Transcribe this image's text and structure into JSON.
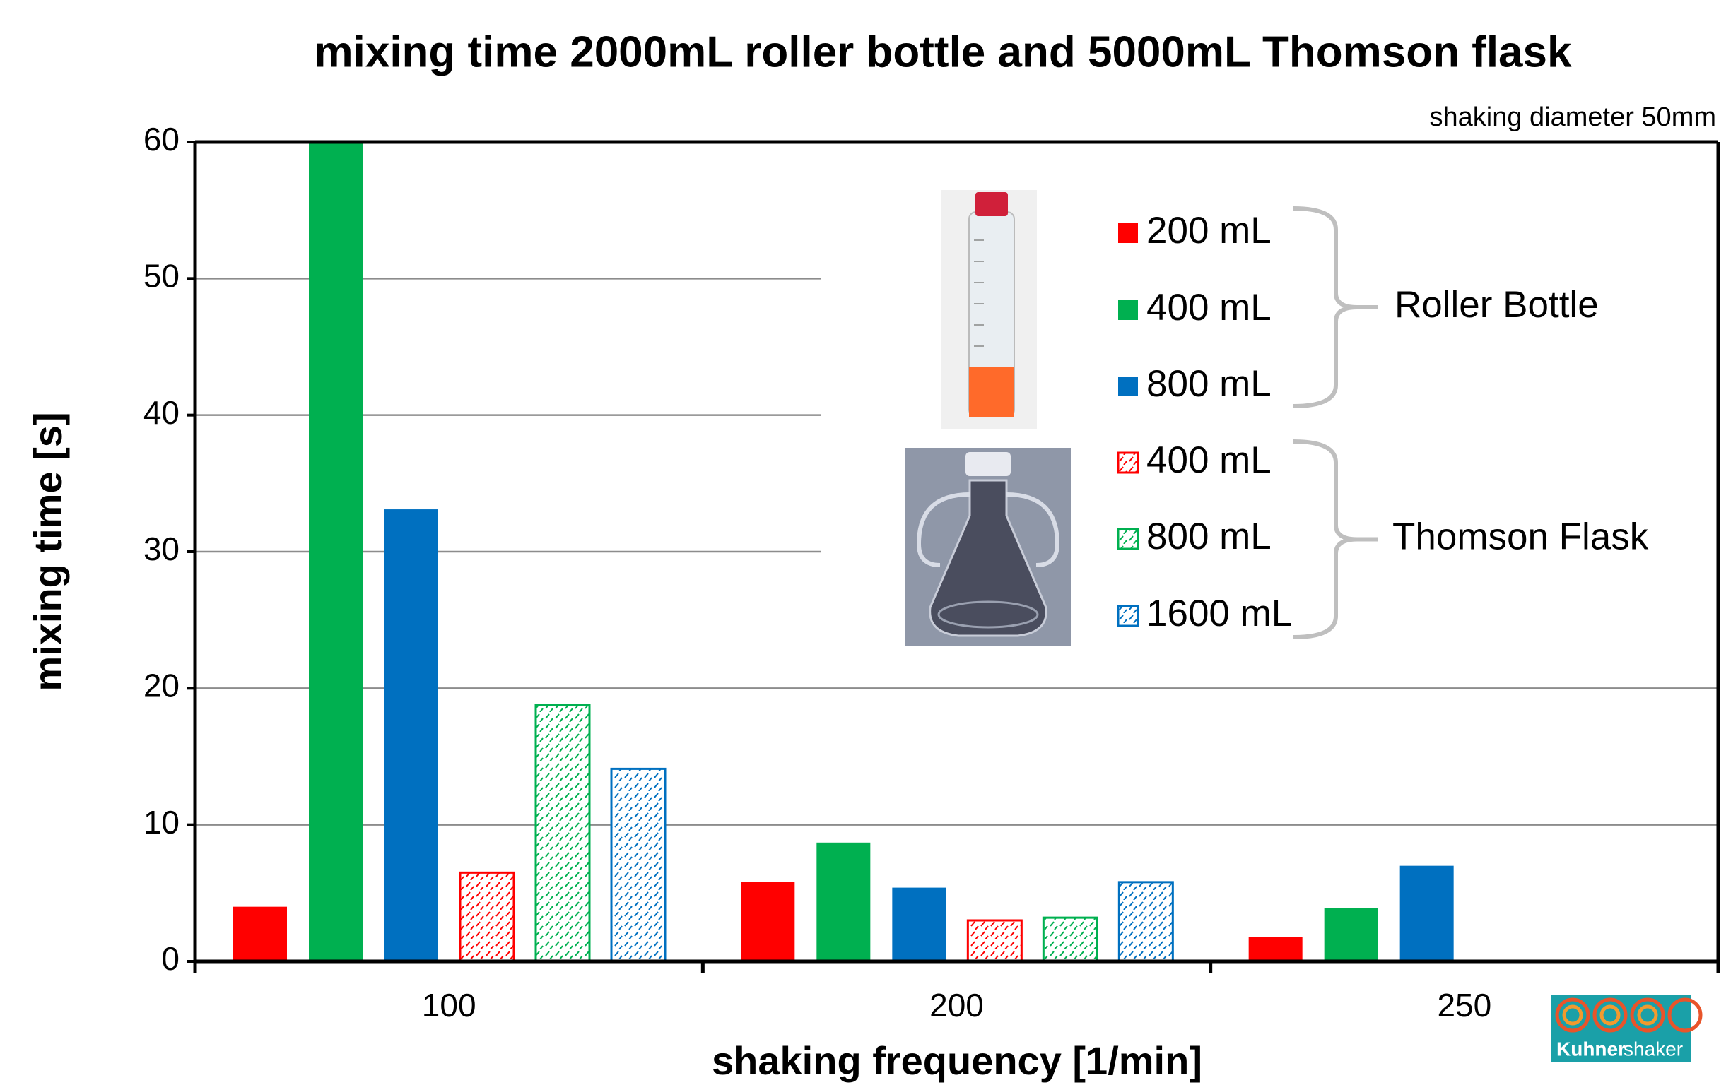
{
  "chart_data": {
    "type": "bar",
    "title": "mixing time 2000mL roller bottle and 5000mL Thomson flask",
    "subtitle": "shaking diameter 50mm",
    "x_label": "shaking frequency  [1/min]",
    "y_label": "mixing time [s]",
    "categories": [
      "100",
      "200",
      "250"
    ],
    "ylim": [
      0,
      60
    ],
    "yticks": [
      0,
      10,
      20,
      30,
      40,
      50,
      60
    ],
    "grid": true,
    "series": [
      {
        "name": "200 mL",
        "color": "#ff0000",
        "pattern": "solid",
        "group": 0,
        "values": [
          4.0,
          5.8,
          1.8
        ]
      },
      {
        "name": "400 mL",
        "color": "#00b050",
        "pattern": "solid",
        "group": 0,
        "values": [
          60,
          8.7,
          3.9
        ]
      },
      {
        "name": "800 mL",
        "color": "#0070c0",
        "pattern": "solid",
        "group": 0,
        "values": [
          33.1,
          5.4,
          7.0
        ]
      },
      {
        "name": "400 mL",
        "color": "#ff0000",
        "pattern": "hatched",
        "group": 1,
        "values": [
          6.5,
          3.0,
          null
        ]
      },
      {
        "name": "800 mL",
        "color": "#00b050",
        "pattern": "hatched",
        "group": 1,
        "values": [
          18.8,
          3.2,
          null
        ]
      },
      {
        "name": "1600 mL",
        "color": "#0070c0",
        "pattern": "hatched",
        "group": 1,
        "values": [
          14.1,
          5.8,
          null
        ]
      }
    ],
    "legend_groups": [
      "Roller Bottle",
      "Thomson Flask"
    ]
  },
  "logo": {
    "brand": "Kuhner",
    "product": "shaker"
  }
}
